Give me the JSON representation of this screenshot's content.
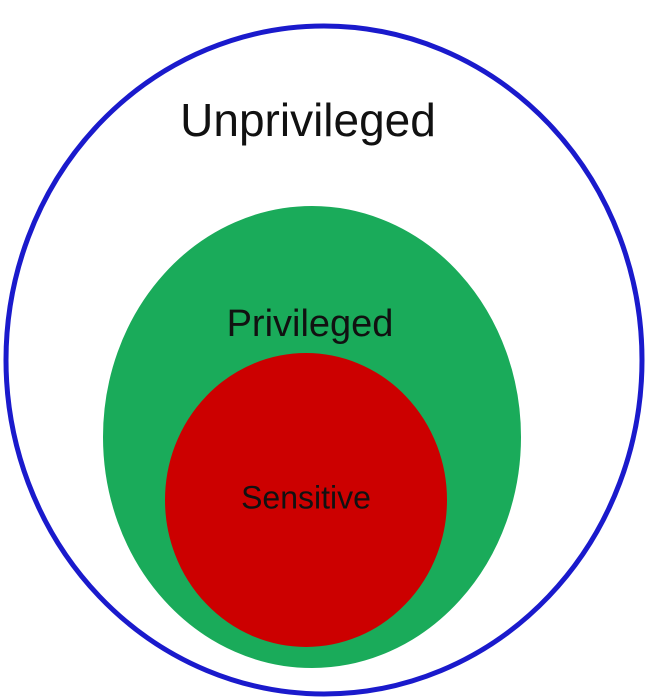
{
  "diagram": {
    "regions": [
      {
        "id": "outer",
        "label": "Unprivileged",
        "fill": "#ffffff",
        "stroke": "#1a1acc"
      },
      {
        "id": "middle",
        "label": "Privileged",
        "fill": "#1aab5a",
        "stroke": "#1aab5a"
      },
      {
        "id": "inner",
        "label": "Sensitive",
        "fill": "#cc0000",
        "stroke": "#cc0000"
      }
    ],
    "label_color": "#111111"
  }
}
